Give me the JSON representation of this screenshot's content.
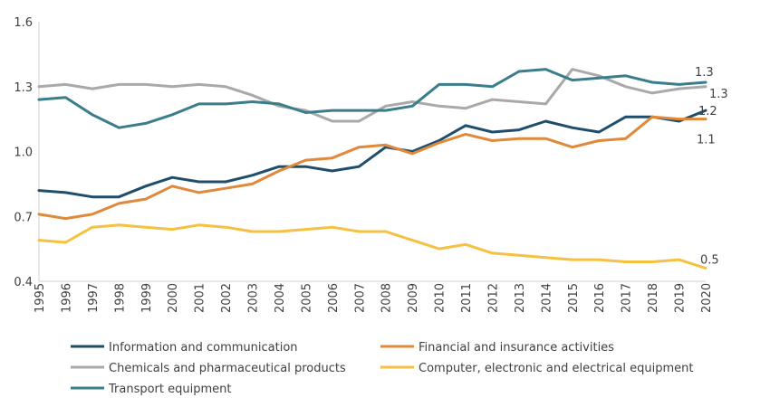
{
  "chart_data": {
    "type": "line",
    "title": "",
    "xlabel": "",
    "ylabel": "",
    "x": [
      "1995",
      "1996",
      "1997",
      "1998",
      "1999",
      "2000",
      "2001",
      "2002",
      "2003",
      "2004",
      "2005",
      "2006",
      "2007",
      "2008",
      "2009",
      "2010",
      "2011",
      "2012",
      "2013",
      "2014",
      "2015",
      "2016",
      "2017",
      "2018",
      "2019",
      "2020"
    ],
    "ylim": [
      0.4,
      1.6
    ],
    "yticks": [
      "1.6",
      "1.3",
      "1.0",
      "0.7",
      "0.4"
    ],
    "ytick_values": [
      1.6,
      1.3,
      1.0,
      0.7,
      0.4
    ],
    "grid": false,
    "legend_position": "bottom",
    "series": [
      {
        "name": "Information and communication",
        "color": "#1F4E6B",
        "end_label": "1.2",
        "values": [
          0.82,
          0.81,
          0.79,
          0.79,
          0.84,
          0.88,
          0.86,
          0.86,
          0.89,
          0.93,
          0.93,
          0.91,
          0.93,
          1.02,
          1.0,
          1.05,
          1.12,
          1.09,
          1.1,
          1.14,
          1.11,
          1.09,
          1.16,
          1.16,
          1.14,
          1.19
        ]
      },
      {
        "name": "Financial and insurance activities",
        "color": "#E0893A",
        "end_label": "1.1",
        "values": [
          0.71,
          0.69,
          0.71,
          0.76,
          0.78,
          0.84,
          0.81,
          0.83,
          0.85,
          0.91,
          0.96,
          0.97,
          1.02,
          1.03,
          0.99,
          1.04,
          1.08,
          1.05,
          1.06,
          1.06,
          1.02,
          1.05,
          1.06,
          1.16,
          1.15,
          1.15
        ]
      },
      {
        "name": "Chemicals and pharmaceutical products",
        "color": "#A9A9A9",
        "end_label": "1.3",
        "values": [
          1.3,
          1.31,
          1.29,
          1.31,
          1.31,
          1.3,
          1.31,
          1.3,
          1.26,
          1.21,
          1.19,
          1.14,
          1.14,
          1.21,
          1.23,
          1.21,
          1.2,
          1.24,
          1.23,
          1.22,
          1.38,
          1.35,
          1.3,
          1.27,
          1.29,
          1.3
        ]
      },
      {
        "name": "Computer, electronic and electrical equipment",
        "color": "#F4C142",
        "end_label": "0.5",
        "values": [
          0.59,
          0.58,
          0.65,
          0.66,
          0.65,
          0.64,
          0.66,
          0.65,
          0.63,
          0.63,
          0.64,
          0.65,
          0.63,
          0.63,
          0.59,
          0.55,
          0.57,
          0.53,
          0.52,
          0.51,
          0.5,
          0.5,
          0.49,
          0.49,
          0.5,
          0.46
        ]
      },
      {
        "name": "Transport equipment",
        "color": "#3A7D8C",
        "end_label": "1.3",
        "values": [
          1.24,
          1.25,
          1.17,
          1.11,
          1.13,
          1.17,
          1.22,
          1.22,
          1.23,
          1.22,
          1.18,
          1.19,
          1.19,
          1.19,
          1.21,
          1.31,
          1.31,
          1.3,
          1.37,
          1.38,
          1.33,
          1.34,
          1.35,
          1.32,
          1.31,
          1.32
        ]
      }
    ]
  }
}
